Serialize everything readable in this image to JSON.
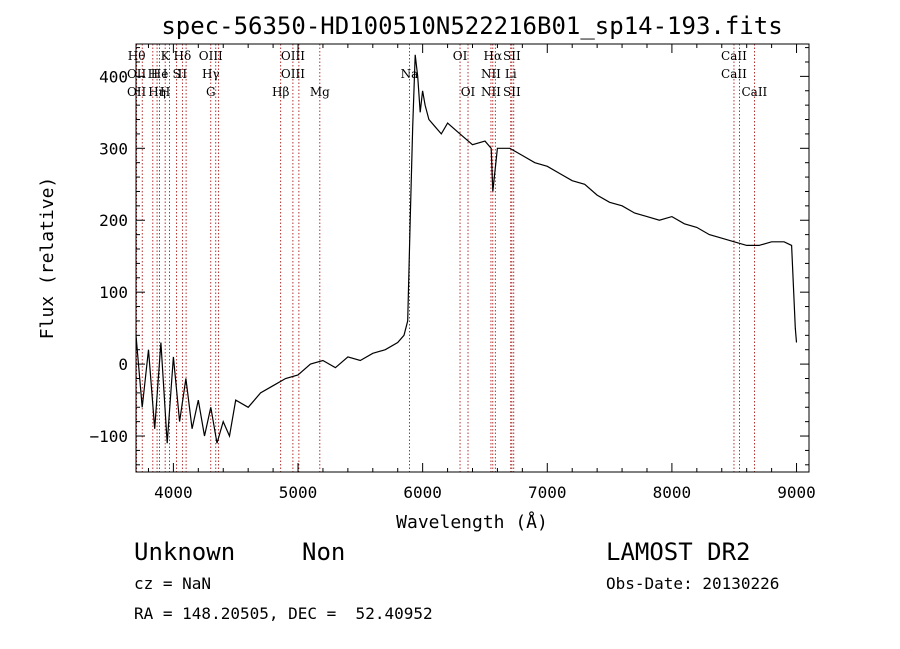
{
  "title": "spec-56350-HD100510N522216B01_sp14-193.fits",
  "info": {
    "class": "Unknown",
    "subclass": "Non",
    "cz": "cz = NaN",
    "coords": "RA = 148.20505, DEC =  52.40952",
    "survey": "LAMOST DR2",
    "obs_date": "Obs-Date: 20130226"
  },
  "chart_data": {
    "type": "line",
    "title": "spec-56350-HD100510N522216B01_sp14-193.fits",
    "xlabel": "Wavelength (Å)",
    "ylabel": "Flux (relative)",
    "xlim": [
      3700,
      9100
    ],
    "ylim": [
      -150,
      445
    ],
    "xticks": [
      4000,
      5000,
      6000,
      7000,
      8000,
      9000
    ],
    "yticks": [
      -100,
      0,
      100,
      200,
      300,
      400
    ],
    "series": [
      {
        "x": [
          3700,
          3750,
          3800,
          3850,
          3900,
          3950,
          4000,
          4050,
          4100,
          4150,
          4200,
          4250,
          4300,
          4350,
          4400,
          4450,
          4500,
          4600,
          4700,
          4800,
          4900,
          5000,
          5100,
          5200,
          5300,
          5400,
          5500,
          5600,
          5700,
          5800,
          5850,
          5880,
          5900,
          5920,
          5940,
          5960,
          5980,
          6000,
          6020,
          6050,
          6100,
          6150,
          6200,
          6300,
          6400,
          6500,
          6550,
          6563,
          6600,
          6700,
          6800,
          6900,
          7000,
          7100,
          7200,
          7300,
          7400,
          7500,
          7600,
          7700,
          7800,
          7900,
          8000,
          8100,
          8200,
          8300,
          8400,
          8500,
          8600,
          8700,
          8800,
          8900,
          8960,
          8990,
          9000
        ],
        "y": [
          40,
          -60,
          20,
          -90,
          30,
          -110,
          10,
          -80,
          -20,
          -90,
          -50,
          -100,
          -60,
          -110,
          -80,
          -100,
          -50,
          -60,
          -40,
          -30,
          -20,
          -15,
          0,
          5,
          -5,
          10,
          5,
          15,
          20,
          30,
          40,
          60,
          200,
          330,
          430,
          400,
          350,
          380,
          360,
          340,
          330,
          320,
          335,
          320,
          305,
          310,
          300,
          240,
          300,
          300,
          290,
          280,
          275,
          265,
          255,
          250,
          235,
          225,
          220,
          210,
          205,
          200,
          205,
          195,
          190,
          180,
          175,
          170,
          165,
          165,
          170,
          170,
          165,
          50,
          30
        ]
      }
    ],
    "lines": [
      {
        "wl": 3705,
        "labels": [
          "Hθ",
          "OII",
          "OII"
        ]
      },
      {
        "wl": 3750,
        "labels": []
      },
      {
        "wl": 3835,
        "labels": [
          "",
          "H",
          ""
        ]
      },
      {
        "wl": 3869,
        "labels": [
          "",
          "",
          "Hη"
        ]
      },
      {
        "wl": 3889,
        "labels": [
          "",
          "He",
          ""
        ]
      },
      {
        "wl": 3934,
        "labels": [
          "K",
          "I",
          "H"
        ]
      },
      {
        "wl": 3969,
        "labels": [
          "",
          "",
          ""
        ]
      },
      {
        "wl": 4026,
        "labels": [
          "",
          "S",
          ""
        ]
      },
      {
        "wl": 4072,
        "labels": [
          "Hδ",
          "II",
          ""
        ]
      },
      {
        "wl": 4102,
        "labels": []
      },
      {
        "wl": 4300,
        "labels": [
          "OIII",
          "Hγ",
          "G"
        ]
      },
      {
        "wl": 4340,
        "labels": []
      },
      {
        "wl": 4363,
        "labels": []
      },
      {
        "wl": 4861,
        "labels": [
          "",
          "",
          "Hβ"
        ]
      },
      {
        "wl": 4959,
        "labels": [
          "OIII",
          "OIII",
          ""
        ]
      },
      {
        "wl": 5007,
        "labels": []
      },
      {
        "wl": 5175,
        "labels": [
          "",
          "",
          "Mg"
        ]
      },
      {
        "wl": 5894,
        "labels": [
          "",
          "Na",
          ""
        ]
      },
      {
        "wl": 6300,
        "labels": [
          "OI",
          "",
          ""
        ]
      },
      {
        "wl": 6364,
        "labels": [
          "",
          "",
          "OI"
        ]
      },
      {
        "wl": 6548,
        "labels": [
          "",
          "NII",
          "NII"
        ]
      },
      {
        "wl": 6563,
        "labels": [
          "Hα",
          "",
          ""
        ]
      },
      {
        "wl": 6583,
        "labels": []
      },
      {
        "wl": 6707,
        "labels": [
          "",
          "Li",
          ""
        ]
      },
      {
        "wl": 6716,
        "labels": [
          "SII",
          "",
          "SII"
        ]
      },
      {
        "wl": 6731,
        "labels": []
      },
      {
        "wl": 8498,
        "labels": [
          "CaII",
          "CaII",
          ""
        ]
      },
      {
        "wl": 8542,
        "labels": []
      },
      {
        "wl": 8662,
        "labels": [
          "",
          "",
          "CaII"
        ]
      }
    ]
  }
}
